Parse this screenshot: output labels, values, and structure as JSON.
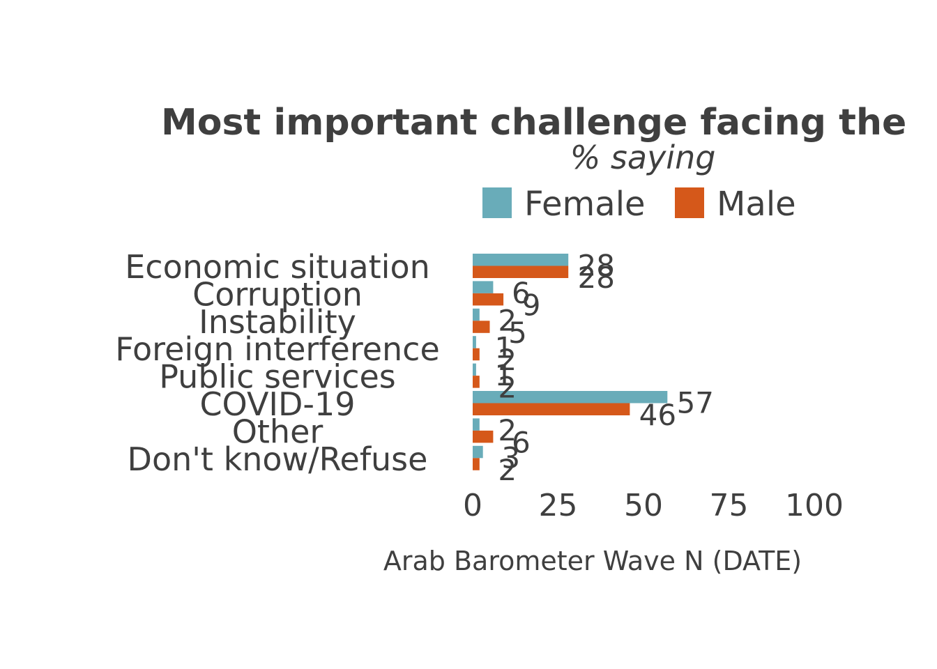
{
  "chart_data": {
    "type": "bar",
    "orientation": "horizontal",
    "title": "Most important challenge facing the",
    "subtitle": "% saying",
    "caption": "Arab Barometer Wave N (DATE)",
    "legend_position": "top",
    "grid": false,
    "categories": [
      "Economic situation",
      "Corruption",
      "Instability",
      "Foreign interference",
      "Public services",
      "COVID-19",
      "Other",
      "Don't know/Refuse"
    ],
    "series": [
      {
        "name": "Female",
        "color": "#69acb9",
        "values": [
          28,
          6,
          2,
          1,
          1,
          57,
          2,
          3
        ]
      },
      {
        "name": "Male",
        "color": "#d5581a",
        "values": [
          28,
          9,
          5,
          2,
          2,
          46,
          6,
          2
        ]
      }
    ],
    "xlim": [
      0,
      100
    ],
    "xticks": [
      "0",
      "25",
      "50",
      "75",
      "100"
    ]
  }
}
